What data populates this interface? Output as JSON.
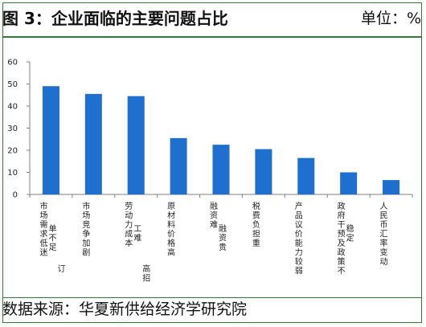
{
  "header": {
    "title": "图 3：企业面临的主要问题占比",
    "unit": "单位：%"
  },
  "footer": {
    "source": "数据来源：华夏新供给经济学研究院"
  },
  "chart_data": {
    "type": "bar",
    "categories": [
      "市场需求低迷 单不足 订",
      "市场竞争加剧",
      "劳动力成本 工难 高招",
      "原材料价格高",
      "融资难 融资贵",
      "税费负担重",
      "产品议价能力较弱",
      "政府干预及政策不 稳定",
      "人民币汇率变动"
    ],
    "category_columns": [
      [
        "市场需求低迷",
        "单不足",
        "订"
      ],
      [
        "市场竞争加剧"
      ],
      [
        "劳动力成本",
        "工难",
        "高招"
      ],
      [
        "原材料价格高"
      ],
      [
        "融资难",
        "融资贵"
      ],
      [
        "税费负担重"
      ],
      [
        "产品议价能力较弱"
      ],
      [
        "政府干预及政策不",
        "稳定"
      ],
      [
        "人民币汇率变动"
      ]
    ],
    "values": [
      49,
      45.5,
      44.5,
      25.5,
      22.5,
      20.5,
      16.5,
      10,
      6.5
    ],
    "ylim": [
      0,
      60
    ],
    "yticks": [
      0,
      10,
      20,
      30,
      40,
      50,
      60
    ],
    "bar_color": "#1f6fce",
    "axis_color": "#808080"
  }
}
